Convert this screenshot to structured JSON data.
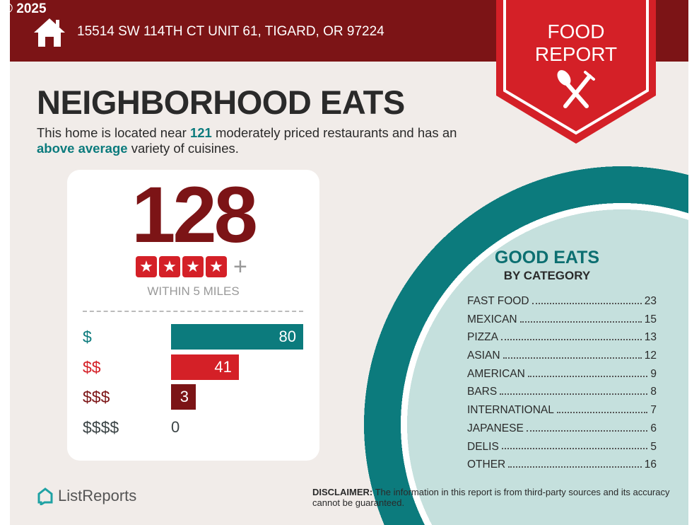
{
  "copyright": "© 2025",
  "header": {
    "address": "15514 SW 114TH CT UNIT 61, TIGARD, OR 97224",
    "badge_line1": "FOOD",
    "badge_line2": "REPORT"
  },
  "title": "NEIGHBORHOOD EATS",
  "intro": {
    "p1": "This home is located near ",
    "count": "121",
    "p2": " moderately priced restaurants and has an ",
    "variety": "above average",
    "p3": " variety of cuisines."
  },
  "card": {
    "total": "128",
    "stars": 4,
    "plus": "+",
    "within": "WITHIN 5 MILES",
    "price_bars": [
      {
        "label": "$",
        "value": 80,
        "color": "#0c7b7d"
      },
      {
        "label": "$$",
        "value": 41,
        "color": "#d42027"
      },
      {
        "label": "$$$",
        "value": 3,
        "color": "#7c1416"
      },
      {
        "label": "$$$$",
        "value": 0,
        "color": "#3b4446"
      }
    ]
  },
  "good_eats": {
    "title": "GOOD EATS",
    "subtitle": "BY CATEGORY",
    "categories": [
      {
        "name": "FAST FOOD",
        "count": "23"
      },
      {
        "name": "MEXICAN",
        "count": "15"
      },
      {
        "name": "PIZZA",
        "count": "13"
      },
      {
        "name": "ASIAN",
        "count": "12"
      },
      {
        "name": "AMERICAN",
        "count": "9"
      },
      {
        "name": "BARS",
        "count": "8"
      },
      {
        "name": "INTERNATIONAL",
        "count": "7"
      },
      {
        "name": "JAPANESE",
        "count": "6"
      },
      {
        "name": "DELIS",
        "count": "5"
      },
      {
        "name": "OTHER",
        "count": "16"
      }
    ]
  },
  "footer": {
    "logo": "ListReports",
    "disclaimer_label": "DISCLAIMER:",
    "disclaimer": " The information in this report is from third-party sources and its accuracy cannot be guaranteed."
  },
  "colors": {
    "dark_red": "#7c1416",
    "red": "#d42027",
    "teal": "#0c7b7d",
    "light_teal": "#c5e0dd",
    "background": "#f1ece9"
  }
}
